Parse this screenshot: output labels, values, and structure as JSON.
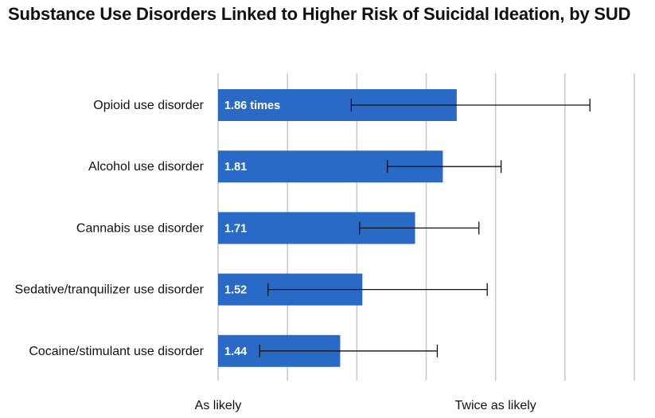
{
  "chart_data": {
    "type": "bar",
    "orientation": "horizontal",
    "title": "Substance Use Disorders Linked to Higher Risk of Suicidal Ideation, by SUD",
    "categories": [
      "Opioid use disorder",
      "Alcohol use disorder",
      "Cannabis use disorder",
      "Sedative/tranquilizer use disorder",
      "Cocaine/stimulant use disorder"
    ],
    "values": [
      1.86,
      1.81,
      1.71,
      1.52,
      1.44
    ],
    "data_labels": [
      "1.86 times",
      "1.81",
      "1.71",
      "1.52",
      "1.44"
    ],
    "error_low": [
      1.48,
      1.61,
      1.51,
      1.18,
      1.15
    ],
    "error_high": [
      2.34,
      2.02,
      1.94,
      1.97,
      1.79
    ],
    "xlim": [
      1.0,
      2.5
    ],
    "tick_labels": [
      {
        "value": 1.0,
        "label": "As likely"
      },
      {
        "value": 2.0,
        "label": "Twice as likely"
      }
    ],
    "gridlines": [
      1.0,
      1.25,
      1.5,
      1.75,
      2.0,
      2.25,
      2.5
    ],
    "grid": true,
    "bar_color": "#2a6ac7",
    "error_bar_color": "#111111",
    "grid_color": "#c8c8c8",
    "data_label_color": "#ffffff"
  }
}
